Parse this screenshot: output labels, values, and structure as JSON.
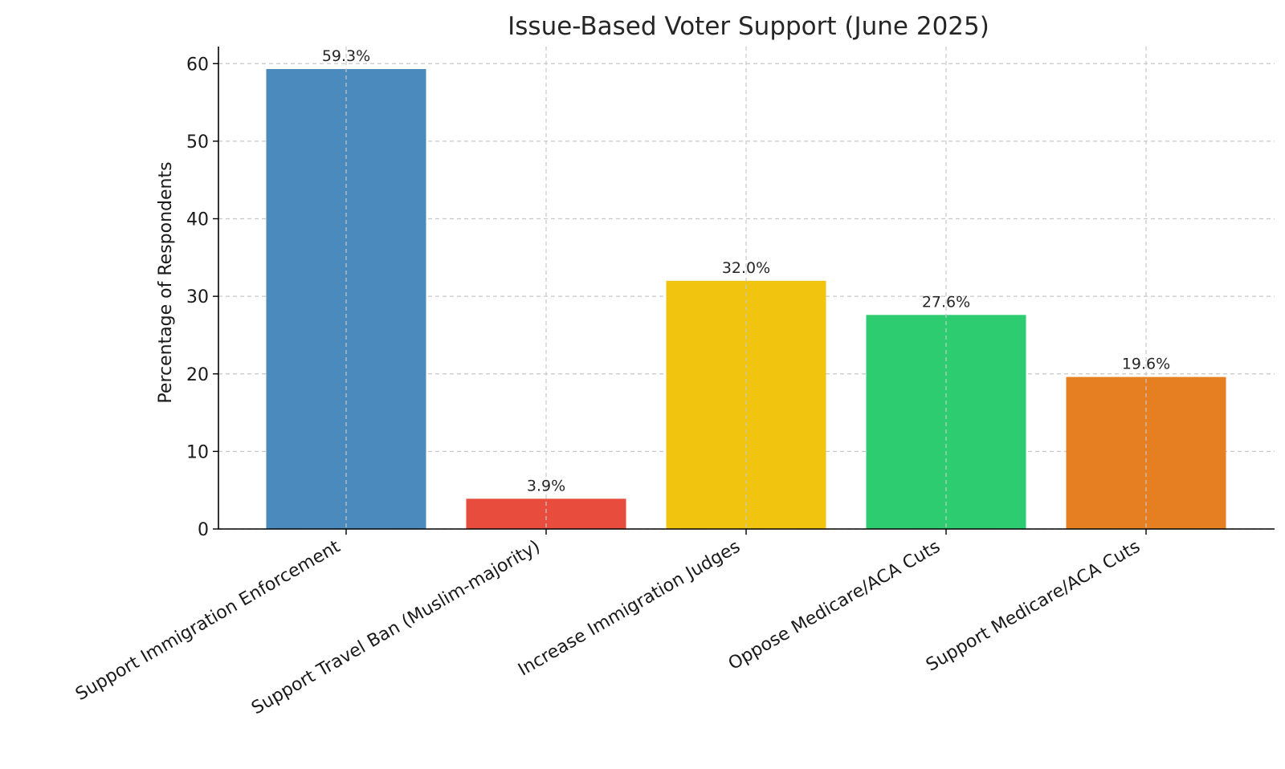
{
  "chart_data": {
    "type": "bar",
    "title": "Issue-Based Voter Support (June 2025)",
    "xlabel": "",
    "ylabel": "Percentage of Respondents",
    "categories": [
      "Support Immigration Enforcement",
      "Support Travel Ban (Muslim-majority)",
      "Increase Immigration Judges",
      "Oppose Medicare/ACA Cuts",
      "Support Medicare/ACA Cuts"
    ],
    "values": [
      59.3,
      3.9,
      32.0,
      27.6,
      19.6
    ],
    "data_labels": [
      "59.3%",
      "3.9%",
      "32.0%",
      "27.6%",
      "19.6%"
    ],
    "colors": [
      "#4a8abd",
      "#e74c3c",
      "#f1c40f",
      "#2ecc71",
      "#e67e22"
    ],
    "ylim": [
      0,
      62.2
    ],
    "yticks": [
      0,
      10,
      20,
      30,
      40,
      50,
      60
    ],
    "grid": true
  }
}
